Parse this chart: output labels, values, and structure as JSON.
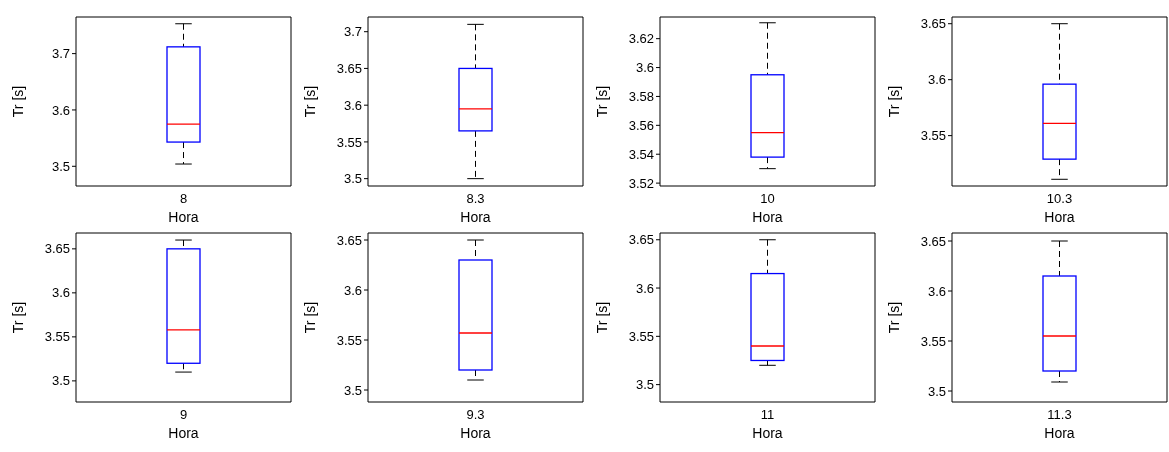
{
  "chart_data": [
    {
      "type": "box",
      "categories": [
        "8"
      ],
      "xlabel": "Hora",
      "ylabel": "Tr [s]",
      "ylim": [
        3.465,
        3.765
      ],
      "yticks": [
        3.5,
        3.6,
        3.7
      ],
      "color": "#0000ff",
      "boxes": [
        {
          "low": 3.504,
          "q1": 3.543,
          "median": 3.575,
          "q3": 3.712,
          "high": 3.753
        }
      ]
    },
    {
      "type": "box",
      "categories": [
        "8.3"
      ],
      "xlabel": "Hora",
      "ylabel": "Tr [s]",
      "ylim": [
        3.49,
        3.72
      ],
      "yticks": [
        3.5,
        3.55,
        3.6,
        3.65,
        3.7
      ],
      "color": "#0000ff",
      "boxes": [
        {
          "low": 3.5,
          "q1": 3.565,
          "median": 3.595,
          "q3": 3.65,
          "high": 3.71
        }
      ]
    },
    {
      "type": "box",
      "categories": [
        "10"
      ],
      "xlabel": "Hora",
      "ylabel": "Tr [s]",
      "ylim": [
        3.518,
        3.635
      ],
      "yticks": [
        3.52,
        3.54,
        3.56,
        3.58,
        3.6,
        3.62
      ],
      "color": "#0000ff",
      "boxes": [
        {
          "low": 3.53,
          "q1": 3.538,
          "median": 3.555,
          "q3": 3.595,
          "high": 3.631
        }
      ]
    },
    {
      "type": "box",
      "categories": [
        "10.3"
      ],
      "xlabel": "Hora",
      "ylabel": "Tr [s]",
      "ylim": [
        3.505,
        3.656
      ],
      "yticks": [
        3.55,
        3.6,
        3.65
      ],
      "color": "#0000ff",
      "boxes": [
        {
          "low": 3.511,
          "q1": 3.529,
          "median": 3.561,
          "q3": 3.596,
          "high": 3.65
        }
      ]
    },
    {
      "type": "box",
      "categories": [
        "9"
      ],
      "xlabel": "Hora",
      "ylabel": "Tr [s]",
      "ylim": [
        3.476,
        3.668
      ],
      "yticks": [
        3.5,
        3.55,
        3.6,
        3.65
      ],
      "color": "#0000ff",
      "boxes": [
        {
          "low": 3.51,
          "q1": 3.52,
          "median": 3.558,
          "q3": 3.65,
          "high": 3.66
        }
      ]
    },
    {
      "type": "box",
      "categories": [
        "9.3"
      ],
      "xlabel": "Hora",
      "ylabel": "Tr [s]",
      "ylim": [
        3.488,
        3.657
      ],
      "yticks": [
        3.5,
        3.55,
        3.6,
        3.65
      ],
      "color": "#0000ff",
      "boxes": [
        {
          "low": 3.51,
          "q1": 3.52,
          "median": 3.557,
          "q3": 3.63,
          "high": 3.65
        }
      ]
    },
    {
      "type": "box",
      "categories": [
        "11"
      ],
      "xlabel": "Hora",
      "ylabel": "Tr [s]",
      "ylim": [
        3.482,
        3.657
      ],
      "yticks": [
        3.5,
        3.55,
        3.6,
        3.65
      ],
      "color": "#0000ff",
      "boxes": [
        {
          "low": 3.52,
          "q1": 3.525,
          "median": 3.54,
          "q3": 3.615,
          "high": 3.65
        }
      ]
    },
    {
      "type": "box",
      "categories": [
        "11.3"
      ],
      "xlabel": "Hora",
      "ylabel": "Tr [s]",
      "ylim": [
        3.489,
        3.658
      ],
      "yticks": [
        3.5,
        3.55,
        3.6,
        3.65
      ],
      "color": "#0000ff",
      "boxes": [
        {
          "low": 3.509,
          "q1": 3.52,
          "median": 3.555,
          "q3": 3.615,
          "high": 3.65
        }
      ]
    }
  ]
}
